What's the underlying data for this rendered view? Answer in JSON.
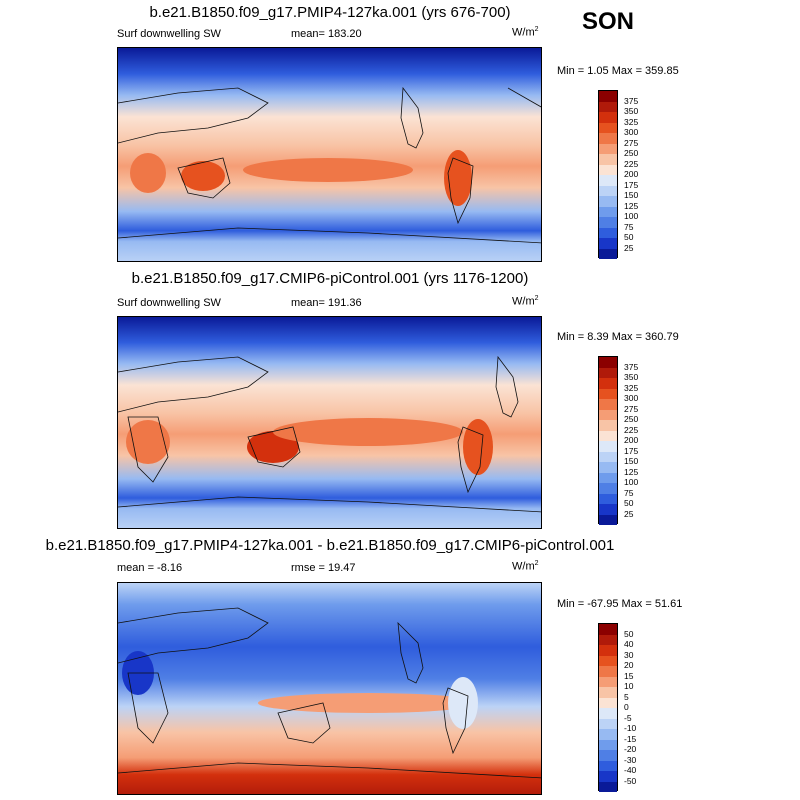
{
  "season": "SON",
  "panels": [
    {
      "title": "b.e21.B1850.f09_g17.PMIP4-127ka.001 (yrs 676-700)",
      "left_label": "Surf downwelling SW",
      "center_label": "mean= 183.20",
      "units": "W/m",
      "units_sup": "2",
      "minmax": "Min =   1.05 Max = 359.85",
      "colorbar_labels": [
        "375",
        "350",
        "325",
        "300",
        "275",
        "250",
        "225",
        "200",
        "175",
        "150",
        "125",
        "100",
        "75",
        "50",
        "25"
      ],
      "kind": "abs"
    },
    {
      "title": "b.e21.B1850.f09_g17.CMIP6-piControl.001 (yrs 1176-1200)",
      "left_label": "Surf downwelling SW",
      "center_label": "mean= 191.36",
      "units": "W/m",
      "units_sup": "2",
      "minmax": "Min =   8.39 Max = 360.79",
      "colorbar_labels": [
        "375",
        "350",
        "325",
        "300",
        "275",
        "250",
        "225",
        "200",
        "175",
        "150",
        "125",
        "100",
        "75",
        "50",
        "25"
      ],
      "kind": "abs"
    },
    {
      "title": "b.e21.B1850.f09_g17.PMIP4-127ka.001 - b.e21.B1850.f09_g17.CMIP6-piControl.001",
      "left_label": "mean =  -8.16",
      "center_label": "rmse =  19.47",
      "units": "W/m",
      "units_sup": "2",
      "minmax": "Min = -67.95 Max =  51.61",
      "colorbar_labels": [
        "50",
        "40",
        "30",
        "20",
        "15",
        "10",
        "5",
        "0",
        "-5",
        "-10",
        "-15",
        "-20",
        "-30",
        "-40",
        "-50"
      ],
      "kind": "diff"
    }
  ],
  "colors": {
    "palette16": [
      "#8b0000",
      "#b01a0a",
      "#d3300d",
      "#e6521f",
      "#ef7747",
      "#f59d75",
      "#f8c4a6",
      "#fbe3d4",
      "#dde8f8",
      "#bcd3f6",
      "#97baf2",
      "#6f9cec",
      "#4f7fe5",
      "#2f5ddd",
      "#1836c8",
      "#0a1a98"
    ]
  }
}
